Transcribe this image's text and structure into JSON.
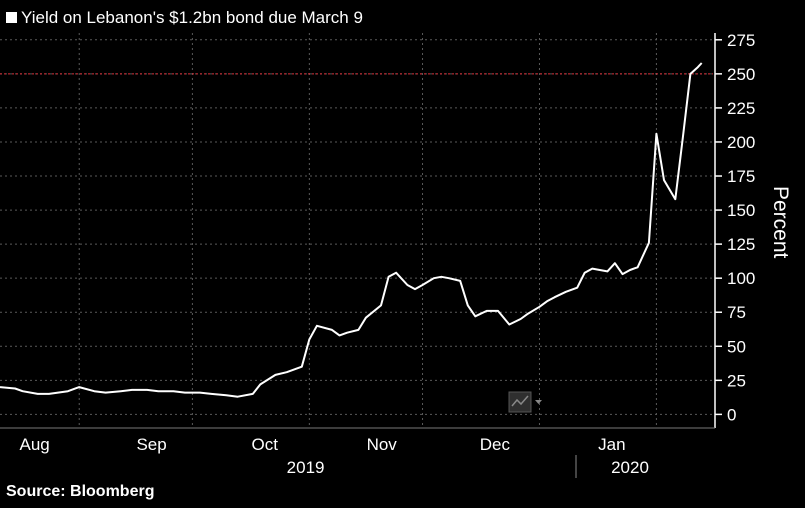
{
  "title": "Yield on Lebanon's $1.2bn bond due March 9",
  "source": "Source: Bloomberg",
  "colors": {
    "background": "#000000",
    "line": "#ffffff",
    "grid": "#5a5a5a",
    "reference": "#e0303a"
  },
  "chart_data": {
    "type": "line",
    "title": "Yield on Lebanon's $1.2bn bond due March 9",
    "ylabel": "Percent",
    "xlabel": "",
    "ylim": [
      -10,
      280
    ],
    "yticks": [
      0,
      25,
      50,
      75,
      100,
      125,
      150,
      175,
      200,
      225,
      250,
      275
    ],
    "ytick_labels": [
      "0",
      "25",
      "50",
      "75",
      "100",
      "125",
      "150",
      "175",
      "200",
      "225",
      "250",
      "275"
    ],
    "xlim": [
      "2019-07-26",
      "2020-01-31"
    ],
    "month_labels": [
      {
        "label": "Aug",
        "date": "2019-08-01"
      },
      {
        "label": "Sep",
        "date": "2019-09-01"
      },
      {
        "label": "Oct",
        "date": "2019-10-01"
      },
      {
        "label": "Nov",
        "date": "2019-11-01"
      },
      {
        "label": "Dec",
        "date": "2019-12-01"
      },
      {
        "label": "Jan",
        "date": "2020-01-01"
      }
    ],
    "year_labels": [
      {
        "label": "2019",
        "date": "2019-10-15"
      },
      {
        "label": "2020",
        "date": "2020-01-09"
      }
    ],
    "grid": true,
    "reference_line": 250,
    "legend": "none",
    "series": [
      {
        "x": [
          "2019-07-26",
          "2019-07-30",
          "2019-08-01",
          "2019-08-05",
          "2019-08-08",
          "2019-08-13",
          "2019-08-16",
          "2019-08-20",
          "2019-08-23",
          "2019-08-27",
          "2019-08-30",
          "2019-09-03",
          "2019-09-06",
          "2019-09-10",
          "2019-09-13",
          "2019-09-17",
          "2019-09-20",
          "2019-09-24",
          "2019-09-27",
          "2019-10-01",
          "2019-10-03",
          "2019-10-07",
          "2019-10-10",
          "2019-10-14",
          "2019-10-16",
          "2019-10-18",
          "2019-10-22",
          "2019-10-24",
          "2019-10-26",
          "2019-10-29",
          "2019-10-31",
          "2019-11-04",
          "2019-11-06",
          "2019-11-08",
          "2019-11-11",
          "2019-11-13",
          "2019-11-15",
          "2019-11-18",
          "2019-11-20",
          "2019-11-22",
          "2019-11-25",
          "2019-11-27",
          "2019-11-29",
          "2019-12-02",
          "2019-12-05",
          "2019-12-08",
          "2019-12-11",
          "2019-12-13",
          "2019-12-16",
          "2019-12-18",
          "2019-12-20",
          "2019-12-23",
          "2019-12-26",
          "2019-12-28",
          "2019-12-30",
          "2020-01-01",
          "2020-01-03",
          "2020-01-05",
          "2020-01-07",
          "2020-01-09",
          "2020-01-11",
          "2020-01-14",
          "2020-01-16",
          "2020-01-18",
          "2020-01-21",
          "2020-01-23",
          "2020-01-25",
          "2020-01-27",
          "2020-01-28"
        ],
        "y": [
          20,
          19,
          17,
          15,
          15,
          17,
          20,
          17,
          16,
          17,
          18,
          18,
          17,
          17,
          16,
          16,
          15,
          14,
          13,
          15,
          22,
          29,
          31,
          35,
          55,
          65,
          62,
          58,
          60,
          62,
          71,
          80,
          101,
          104,
          95,
          92,
          95,
          100,
          101,
          100,
          98,
          80,
          72,
          76,
          76,
          66,
          70,
          74,
          79,
          83,
          86,
          90,
          93,
          104,
          107,
          106,
          105,
          111,
          103,
          106,
          108,
          126,
          206,
          172,
          158,
          203,
          250,
          255,
          258
        ]
      }
    ]
  }
}
